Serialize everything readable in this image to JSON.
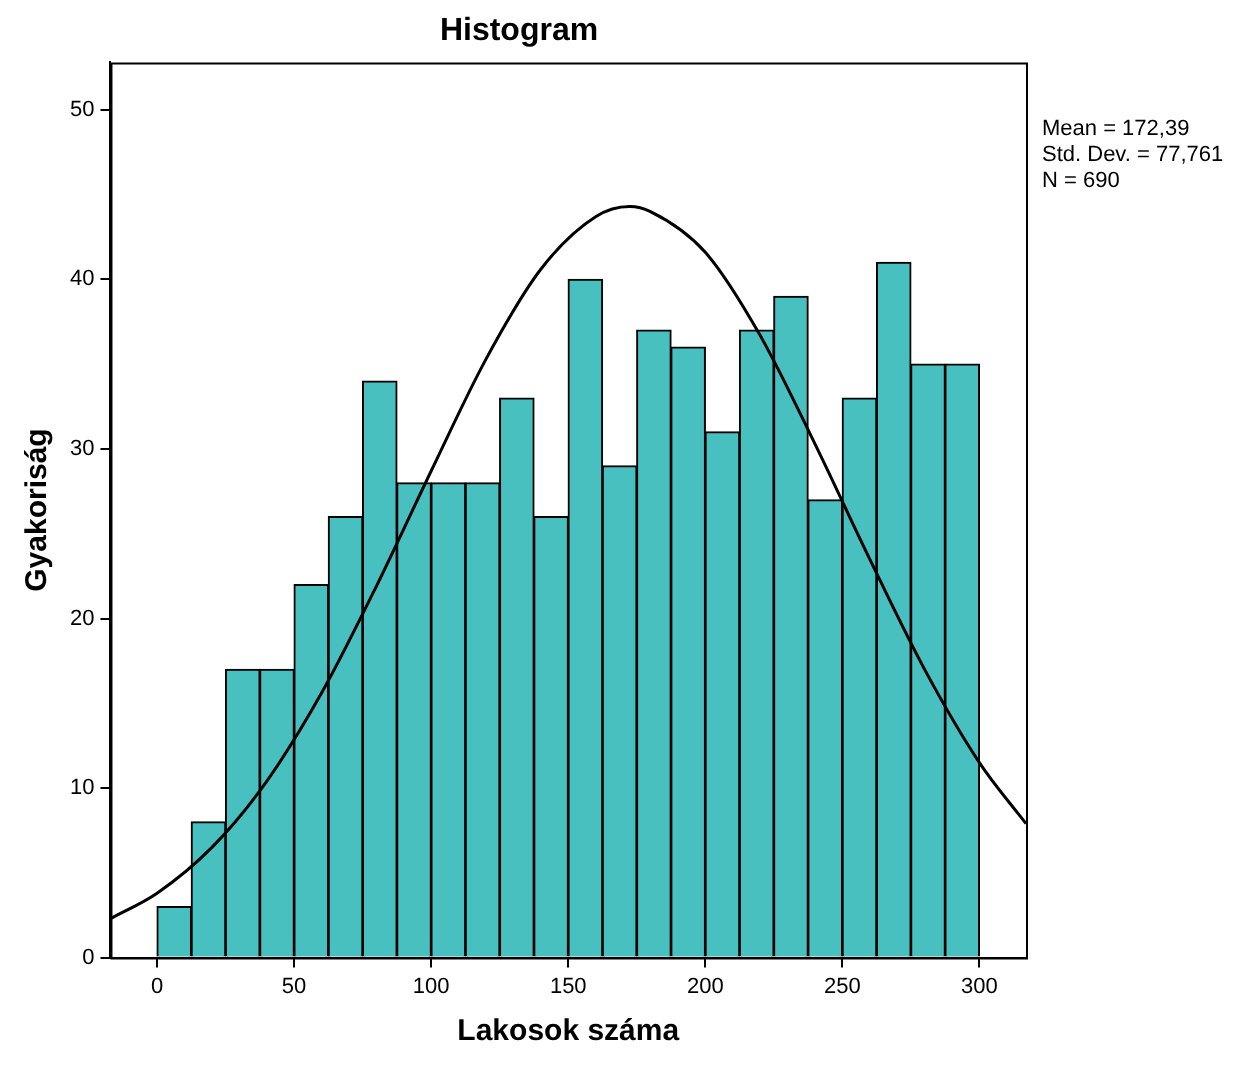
{
  "chart_data": {
    "type": "histogram",
    "title": "Histogram",
    "xlabel": "Lakosok száma",
    "ylabel": "Gyakoriság",
    "bins": [
      0,
      12.5,
      25,
      37.5,
      50,
      62.5,
      75,
      87.5,
      100,
      112.5,
      125,
      137.5,
      150,
      162.5,
      175,
      187.5,
      200,
      212.5,
      225,
      237.5,
      250,
      262.5,
      275,
      287.5,
      300
    ],
    "series": [
      {
        "color": "#48c0c0",
        "values": [
          3,
          8,
          17,
          17,
          22,
          26,
          34,
          28,
          28,
          28,
          33,
          26,
          40,
          29,
          37,
          36,
          31,
          37,
          39,
          27,
          33,
          41,
          35,
          35
        ]
      },
      {
        "type": "line",
        "color": "#000000",
        "x": [
          -17,
          0,
          20,
          40,
          60,
          80,
          100,
          120,
          140,
          160,
          172.39,
          180,
          200,
          220,
          240,
          260,
          280,
          300,
          317
        ],
        "values": [
          2.3,
          3.8,
          6.5,
          10.4,
          15.6,
          21.9,
          28.7,
          35.3,
          40.6,
          43.7,
          44.3,
          44.0,
          41.6,
          36.7,
          30.3,
          23.5,
          17.0,
          11.5,
          7.9
        ]
      }
    ],
    "xlim": [
      -17,
      317
    ],
    "xticks": [
      0,
      50,
      100,
      150,
      200,
      250,
      300
    ],
    "ylim": [
      0,
      52.8
    ],
    "yticks": [
      0,
      10,
      20,
      30,
      40,
      50
    ],
    "grid": false,
    "legend": false,
    "marker": "none",
    "line_style": "solid",
    "annotations": [
      "Mean = 172,39",
      "Std. Dev. = 77,761",
      "N = 690"
    ]
  }
}
